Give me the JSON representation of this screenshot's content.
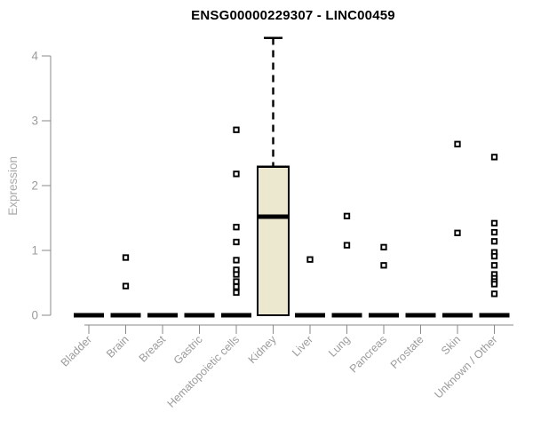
{
  "title": "ENSG00000229307 - LINC00459",
  "chart_data": {
    "type": "boxplot",
    "title": "ENSG00000229307 - LINC00459",
    "xlabel": "",
    "ylabel": "Expression",
    "ylim": [
      0,
      4.3
    ],
    "yticks": [
      0,
      1,
      2,
      3,
      4
    ],
    "grid": false,
    "legend": "none",
    "categories": [
      "Bladder",
      "Brain",
      "Breast",
      "Gastric",
      "Hematopoietic cells",
      "Kidney",
      "Liver",
      "Lung",
      "Pancreas",
      "Prostate",
      "Skin",
      "Unknown / Other"
    ],
    "series": [
      {
        "name": "Bladder",
        "low": 0,
        "q1": 0,
        "median": 0,
        "q3": 0,
        "high": 0,
        "outliers": []
      },
      {
        "name": "Brain",
        "low": 0,
        "q1": 0,
        "median": 0,
        "q3": 0,
        "high": 0,
        "outliers": [
          0.89,
          0.45
        ]
      },
      {
        "name": "Breast",
        "low": 0,
        "q1": 0,
        "median": 0,
        "q3": 0,
        "high": 0,
        "outliers": []
      },
      {
        "name": "Gastric",
        "low": 0,
        "q1": 0,
        "median": 0,
        "q3": 0,
        "high": 0,
        "outliers": []
      },
      {
        "name": "Hematopoietic cells",
        "low": 0,
        "q1": 0,
        "median": 0,
        "q3": 0,
        "high": 0,
        "outliers": [
          2.86,
          2.18,
          1.36,
          1.13,
          0.85,
          0.7,
          0.63,
          0.52,
          0.44,
          0.35
        ]
      },
      {
        "name": "Kidney",
        "low": 0,
        "q1": 0,
        "median": 1.52,
        "q3": 2.29,
        "high": 4.28,
        "outliers": []
      },
      {
        "name": "Liver",
        "low": 0,
        "q1": 0,
        "median": 0,
        "q3": 0,
        "high": 0,
        "outliers": [
          0.86
        ]
      },
      {
        "name": "Lung",
        "low": 0,
        "q1": 0,
        "median": 0,
        "q3": 0,
        "high": 0,
        "outliers": [
          1.53,
          1.08
        ]
      },
      {
        "name": "Pancreas",
        "low": 0,
        "q1": 0,
        "median": 0,
        "q3": 0,
        "high": 0,
        "outliers": [
          1.05,
          0.77
        ]
      },
      {
        "name": "Prostate",
        "low": 0,
        "q1": 0,
        "median": 0,
        "q3": 0,
        "high": 0,
        "outliers": []
      },
      {
        "name": "Skin",
        "low": 0,
        "q1": 0,
        "median": 0,
        "q3": 0,
        "high": 0,
        "outliers": [
          2.64,
          1.27
        ]
      },
      {
        "name": "Unknown / Other",
        "low": 0,
        "q1": 0,
        "median": 0,
        "q3": 0,
        "high": 0,
        "outliers": [
          2.44,
          1.42,
          1.28,
          1.14,
          0.97,
          0.91,
          0.77,
          0.63,
          0.57,
          0.52,
          0.48,
          0.33
        ]
      }
    ],
    "colors": {
      "box_fill": "#ece8cf",
      "box_border": "#000000",
      "median": "#000000",
      "outlier": "#000000",
      "axis": "#8a8a8a",
      "tick_label": "#9b9b9b",
      "axis_label": "#a9a9a9",
      "title": "#000000",
      "background": "#ffffff"
    }
  }
}
